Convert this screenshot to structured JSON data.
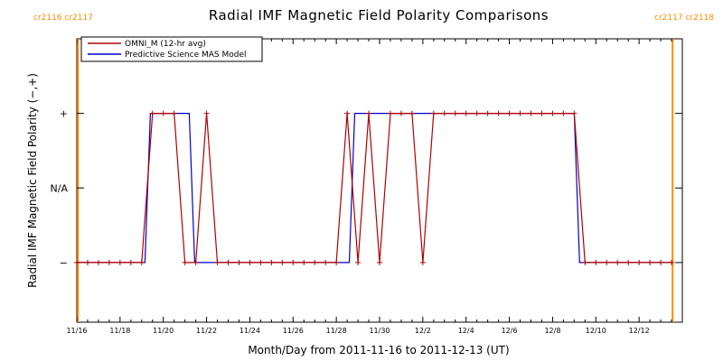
{
  "chart_data": {
    "type": "line",
    "title": "Radial IMF Magnetic Field Polarity Comparisons",
    "xlabel": "Month/Day from 2011-11-16 to 2011-12-13 (UT)",
    "ylabel": "Radial IMF Magnetic Field Polarity (−,+)",
    "xlim": [
      0,
      28
    ],
    "ylim": [
      -1.8,
      2
    ],
    "x_ticks": [
      {
        "day": 0,
        "label": "11/16"
      },
      {
        "day": 2,
        "label": "11/18"
      },
      {
        "day": 4,
        "label": "11/20"
      },
      {
        "day": 6,
        "label": "11/22"
      },
      {
        "day": 8,
        "label": "11/24"
      },
      {
        "day": 10,
        "label": "11/26"
      },
      {
        "day": 12,
        "label": "11/28"
      },
      {
        "day": 14,
        "label": "11/30"
      },
      {
        "day": 16,
        "label": "12/2"
      },
      {
        "day": 18,
        "label": "12/4"
      },
      {
        "day": 20,
        "label": "12/6"
      },
      {
        "day": 22,
        "label": "12/8"
      },
      {
        "day": 24,
        "label": "12/10"
      },
      {
        "day": 26,
        "label": "12/12"
      }
    ],
    "y_ticks": [
      {
        "value": 1,
        "label": "+"
      },
      {
        "value": 0,
        "label": "N/A"
      },
      {
        "value": -1,
        "label": "−"
      }
    ],
    "legend": {
      "placement": "top-left",
      "entries": [
        {
          "label": "OMNI_M (12-hr avg)",
          "color": "#b00000"
        },
        {
          "label": "Predictive Science MAS Model",
          "color": "#0000c8"
        }
      ]
    },
    "carrington_markers": [
      {
        "day": 0.05,
        "labels": [
          "cr2116",
          "cr2117"
        ],
        "side": "left",
        "color": "#ff8c00"
      },
      {
        "day": 27.55,
        "labels": [
          "cr2117",
          "cr2118"
        ],
        "side": "right",
        "color": "#ff8c00"
      }
    ],
    "series": [
      {
        "name": "OMNI_M (12-hr avg)",
        "color": "#b00000",
        "marker": "plus",
        "points": [
          [
            0,
            -1
          ],
          [
            0.5,
            -1
          ],
          [
            1,
            -1
          ],
          [
            1.5,
            -1
          ],
          [
            2,
            -1
          ],
          [
            2.5,
            -1
          ],
          [
            3,
            -1
          ],
          [
            3.5,
            1
          ],
          [
            4,
            1
          ],
          [
            4.5,
            1
          ],
          [
            5,
            -1
          ],
          [
            5.5,
            -1
          ],
          [
            6,
            1
          ],
          [
            6.5,
            -1
          ],
          [
            7,
            -1
          ],
          [
            7.5,
            -1
          ],
          [
            8,
            -1
          ],
          [
            8.5,
            -1
          ],
          [
            9,
            -1
          ],
          [
            9.5,
            -1
          ],
          [
            10,
            -1
          ],
          [
            10.5,
            -1
          ],
          [
            11,
            -1
          ],
          [
            11.5,
            -1
          ],
          [
            12,
            -1
          ],
          [
            12.5,
            1
          ],
          [
            13,
            -1
          ],
          [
            13.5,
            1
          ],
          [
            14,
            -1
          ],
          [
            14.5,
            1
          ],
          [
            15,
            1
          ],
          [
            15.5,
            1
          ],
          [
            16,
            -1
          ],
          [
            16.5,
            1
          ],
          [
            17,
            1
          ],
          [
            17.5,
            1
          ],
          [
            18,
            1
          ],
          [
            18.5,
            1
          ],
          [
            19,
            1
          ],
          [
            19.5,
            1
          ],
          [
            20,
            1
          ],
          [
            20.5,
            1
          ],
          [
            21,
            1
          ],
          [
            21.5,
            1
          ],
          [
            22,
            1
          ],
          [
            22.5,
            1
          ],
          [
            23,
            1
          ],
          [
            23.5,
            -1
          ],
          [
            24,
            -1
          ],
          [
            24.5,
            -1
          ],
          [
            25,
            -1
          ],
          [
            25.5,
            -1
          ],
          [
            26,
            -1
          ],
          [
            26.5,
            -1
          ],
          [
            27,
            -1
          ],
          [
            27.5,
            -1
          ]
        ]
      },
      {
        "name": "Predictive Science MAS Model",
        "color": "#0000c8",
        "points": [
          [
            0,
            -1
          ],
          [
            3.15,
            -1
          ],
          [
            3.4,
            1
          ],
          [
            5.2,
            1
          ],
          [
            5.45,
            -1
          ],
          [
            12.6,
            -1
          ],
          [
            12.85,
            1
          ],
          [
            23.0,
            1
          ],
          [
            23.25,
            -1
          ],
          [
            27.5,
            -1
          ]
        ]
      }
    ]
  }
}
